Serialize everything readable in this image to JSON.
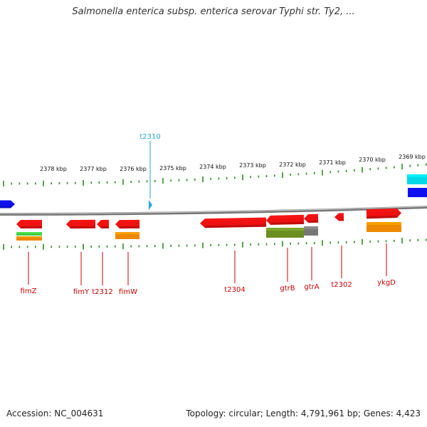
{
  "title": "Salmonella enterica subsp. enterica serovar Typhi str. Ty2, ...",
  "footer": {
    "accession": "Accession: NC_004631",
    "summary": "Topology: circular; Length: 4,791,961 bp; Genes: 4,423"
  },
  "colors": {
    "backbone": "#8c8c8c",
    "tick": "#2e8b22",
    "gene_red": "#ee1111",
    "label_red": "#cc0000",
    "trna": "#22aadd",
    "blue": "#1010ee",
    "cyan": "#00d8e8",
    "green": "#44cc44",
    "orange": "#ee8800",
    "olive": "#6b8e23",
    "gray": "#777777"
  },
  "scale": {
    "unit": "kbp",
    "ticks": [
      {
        "label": "2378 kbp"
      },
      {
        "label": "2377 kbp"
      },
      {
        "label": "2376 kbp"
      },
      {
        "label": "2375 kbp"
      },
      {
        "label": "2374 kbp"
      },
      {
        "label": "2373 kbp"
      },
      {
        "label": "2372 kbp"
      },
      {
        "label": "2371 kbp"
      },
      {
        "label": "2370 kbp"
      },
      {
        "label": "2369 kbp"
      }
    ]
  },
  "genes": [
    {
      "name": "fimZ",
      "strand": "-",
      "color": "#ee1111"
    },
    {
      "name": "fimY",
      "strand": "-",
      "color": "#ee1111"
    },
    {
      "name": "t2312",
      "strand": "-",
      "color": "#ee1111"
    },
    {
      "name": "fimW",
      "strand": "-",
      "color": "#ee1111"
    },
    {
      "name": "t2304",
      "strand": "-",
      "color": "#ee1111"
    },
    {
      "name": "gtrB",
      "strand": "-",
      "color": "#ee1111"
    },
    {
      "name": "gtrA",
      "strand": "-",
      "color": "#ee1111"
    },
    {
      "name": "t2302",
      "strand": "-",
      "color": "#ee1111"
    },
    {
      "name": "ykgD",
      "strand": "+",
      "color": "#ee1111"
    }
  ],
  "rna": [
    {
      "name": "t2310",
      "color": "#22aadd"
    }
  ]
}
